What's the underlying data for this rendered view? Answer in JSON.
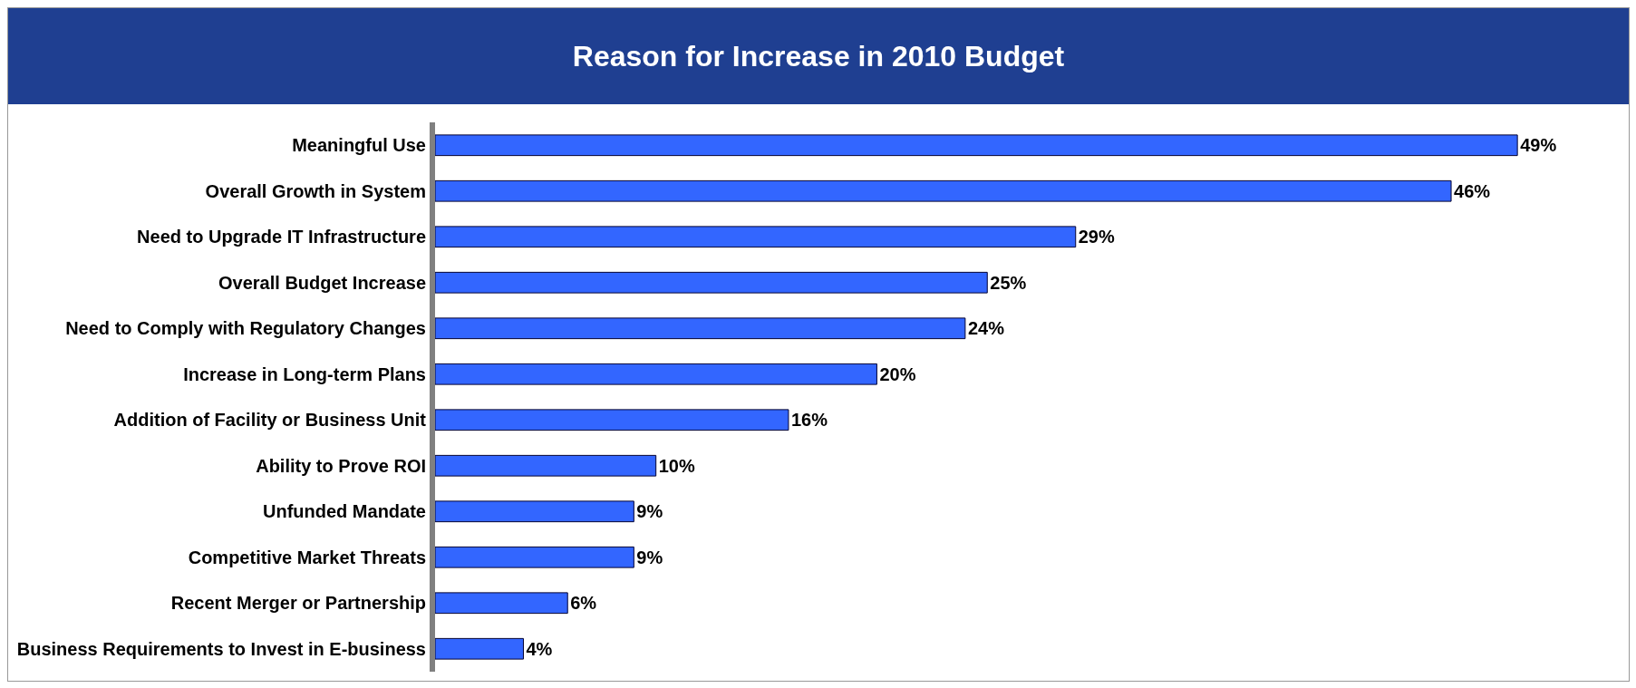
{
  "chart_data": {
    "type": "bar",
    "orientation": "horizontal",
    "title": "Reason for Increase in 2010 Budget",
    "categories": [
      "Meaningful Use",
      "Overall Growth in System",
      "Need to Upgrade IT Infrastructure",
      "Overall Budget Increase",
      "Need to Comply with Regulatory Changes",
      "Increase in Long-term Plans",
      "Addition of Facility or Business Unit",
      "Ability to Prove ROI",
      "Unfunded Mandate",
      "Competitive Market Threats",
      "Recent Merger or Partnership",
      "Business Requirements to Invest in E-business"
    ],
    "values": [
      49,
      46,
      29,
      25,
      24,
      20,
      16,
      10,
      9,
      9,
      6,
      4
    ],
    "value_labels": [
      "49%",
      "46%",
      "29%",
      "25%",
      "24%",
      "20%",
      "16%",
      "10%",
      "9%",
      "9%",
      "6%",
      "4%"
    ],
    "color": "#3366ff",
    "legend": false,
    "tick_labels": "y"
  }
}
